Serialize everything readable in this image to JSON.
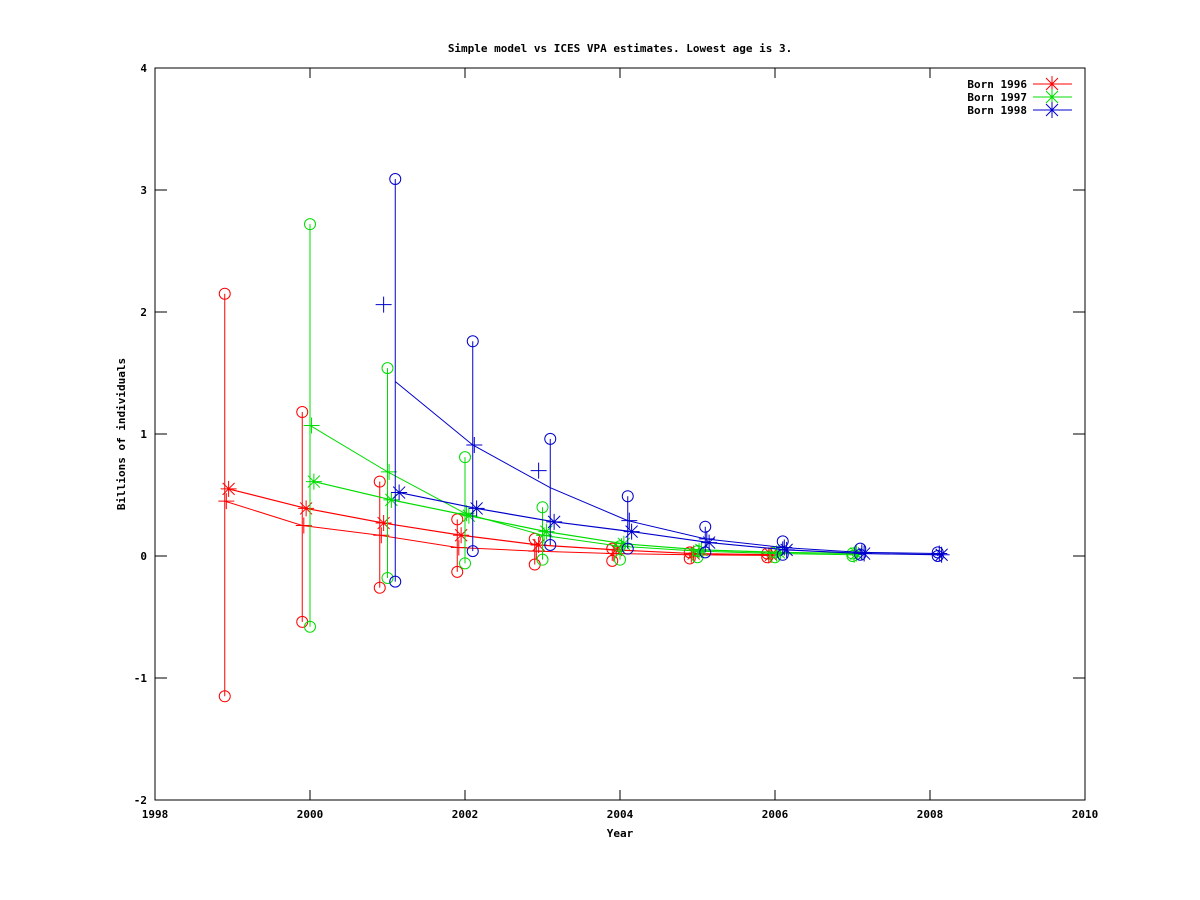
{
  "chart_data": {
    "type": "line",
    "title": "Simple model vs ICES VPA estimates. Lowest age is 3.",
    "xlabel": "Year",
    "ylabel": "Billions of individuals",
    "xlim": [
      1998,
      2010
    ],
    "ylim": [
      -2,
      4
    ],
    "xticks": [
      1998,
      2000,
      2002,
      2004,
      2006,
      2008,
      2010
    ],
    "yticks": [
      -2,
      -1,
      0,
      1,
      2,
      3,
      4
    ],
    "grid": false,
    "legend_position": "top-right",
    "series": [
      {
        "name": "Born 1996",
        "color": "#ff0000",
        "offset": -0.1,
        "years": [
          1999,
          2000,
          2001,
          2002,
          2003,
          2004,
          2005,
          2006
        ],
        "error_high": [
          2.15,
          1.18,
          0.61,
          0.3,
          0.14,
          0.06,
          0.03,
          0.02
        ],
        "error_low": [
          -1.15,
          -0.54,
          -0.26,
          -0.13,
          -0.07,
          -0.04,
          -0.02,
          -0.01
        ],
        "model_star": [
          0.55,
          0.39,
          0.27,
          0.17,
          0.09,
          0.05,
          0.02,
          0.01
        ],
        "model_plus": [
          0.45,
          0.25,
          0.17,
          0.07,
          0.04,
          0.02,
          0.01,
          0.005
        ]
      },
      {
        "name": "Born 1997",
        "color": "#00dd00",
        "offset": 0.0,
        "years": [
          2000,
          2001,
          2002,
          2003,
          2004,
          2005,
          2006,
          2007
        ],
        "error_high": [
          2.72,
          1.54,
          0.81,
          0.4,
          0.08,
          0.04,
          0.03,
          0.02
        ],
        "error_low": [
          -0.58,
          -0.18,
          -0.06,
          -0.03,
          -0.03,
          -0.01,
          -0.01,
          0.0
        ],
        "model_star": [
          0.61,
          0.46,
          0.33,
          0.2,
          0.1,
          0.05,
          0.03,
          0.02
        ],
        "model_plus": [
          1.07,
          0.69,
          0.35,
          0.17,
          0.08,
          0.04,
          0.02,
          0.01
        ]
      },
      {
        "name": "Born 1998",
        "color": "#0000cc",
        "offset": 0.1,
        "years": [
          2001,
          2002,
          2003,
          2004,
          2005,
          2006,
          2007,
          2008
        ],
        "error_high": [
          3.09,
          1.76,
          0.96,
          0.49,
          0.24,
          0.12,
          0.06,
          0.03
        ],
        "error_low": [
          -0.21,
          0.04,
          0.09,
          0.06,
          0.03,
          0.01,
          0.01,
          0.0
        ],
        "model_star": [
          0.52,
          0.39,
          0.28,
          0.2,
          0.11,
          0.05,
          0.02,
          0.01
        ],
        "model_plus": [
          1.43,
          0.91,
          0.56,
          0.29,
          0.14,
          0.07,
          0.03,
          0.02
        ],
        "plus_marker_overrides": {
          "2001": 2.06,
          "2003": 0.7
        }
      }
    ]
  }
}
